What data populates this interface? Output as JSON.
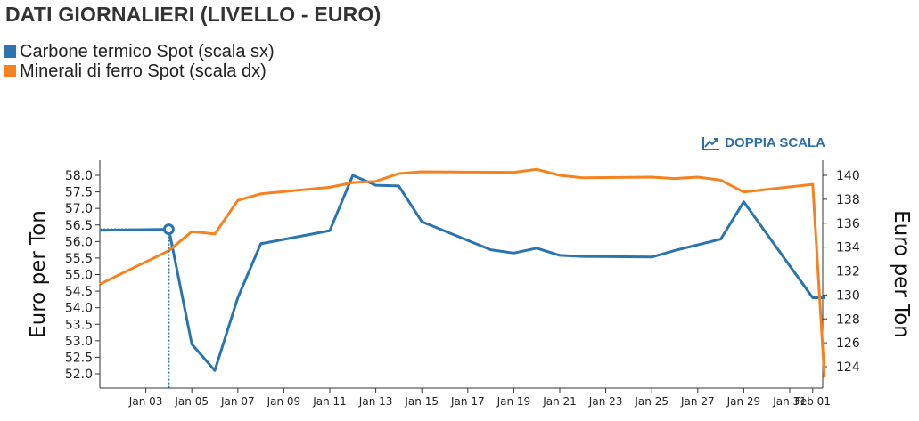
{
  "header": {
    "title": "DATI GIORNALIERI (LIVELLO - EURO)"
  },
  "toolbar": {
    "dual_scale_label": "DOPPIA SCALA",
    "dual_scale_icon": "line-chart-icon",
    "accent_color": "#2f6fa8"
  },
  "chart_data": {
    "type": "line",
    "xlabel": "",
    "ylabel_left": "Euro per Ton",
    "ylabel_right": "Euro per Ton",
    "x_tick_labels": [
      "Jan 03",
      "Jan 05",
      "Jan 07",
      "Jan 09",
      "Jan 11",
      "Jan 13",
      "Jan 15",
      "Jan 17",
      "Jan 19",
      "Jan 21",
      "Jan 23",
      "Jan 25",
      "Jan 27",
      "Jan 29",
      "Jan 31",
      "Feb 01"
    ],
    "ylim_left": [
      51.8,
      58.4
    ],
    "yticks_left": [
      "52.0",
      "52.5",
      "53.0",
      "53.5",
      "54.0",
      "54.5",
      "55.0",
      "55.5",
      "56.0",
      "56.5",
      "57.0",
      "57.5",
      "58.0"
    ],
    "ylim_right": [
      122.8,
      141.6
    ],
    "yticks_right": [
      "124",
      "126",
      "128",
      "130",
      "132",
      "134",
      "136",
      "138",
      "140"
    ],
    "grid": false,
    "legend_position": "top-left",
    "hover_marker": {
      "series": 0,
      "x": "Jan 04",
      "y": 56.37
    },
    "series": [
      {
        "name": "Carbone termico Spot (scala sx)",
        "axis": "left",
        "color": "#2a75b0",
        "points": [
          [
            "Jan 01",
            56.34
          ],
          [
            "Jan 04",
            56.37
          ],
          [
            "Jan 05",
            52.9
          ],
          [
            "Jan 06",
            52.1
          ],
          [
            "Jan 07",
            54.3
          ],
          [
            "Jan 08",
            55.93
          ],
          [
            "Jan 11",
            56.33
          ],
          [
            "Jan 12",
            58.0
          ],
          [
            "Jan 13",
            57.7
          ],
          [
            "Jan 14",
            57.68
          ],
          [
            "Jan 15",
            56.6
          ],
          [
            "Jan 18",
            55.75
          ],
          [
            "Jan 19",
            55.65
          ],
          [
            "Jan 20",
            55.8
          ],
          [
            "Jan 21",
            55.58
          ],
          [
            "Jan 22",
            55.55
          ],
          [
            "Jan 25",
            55.53
          ],
          [
            "Jan 26",
            55.73
          ],
          [
            "Jan 28",
            56.07
          ],
          [
            "Jan 29",
            57.2
          ],
          [
            "Feb 01",
            54.3
          ],
          [
            "Feb 02",
            54.3
          ]
        ]
      },
      {
        "name": "Minerali di ferro Spot (scala dx)",
        "axis": "right",
        "color": "#f5821f",
        "points": [
          [
            "Jan 01",
            130.9
          ],
          [
            "Jan 04",
            133.7
          ],
          [
            "Jan 05",
            135.3
          ],
          [
            "Jan 06",
            135.1
          ],
          [
            "Jan 07",
            137.9
          ],
          [
            "Jan 08",
            138.45
          ],
          [
            "Jan 11",
            139.0
          ],
          [
            "Jan 12",
            139.4
          ],
          [
            "Jan 13",
            139.5
          ],
          [
            "Jan 14",
            140.15
          ],
          [
            "Jan 15",
            140.3
          ],
          [
            "Jan 19",
            140.25
          ],
          [
            "Jan 20",
            140.5
          ],
          [
            "Jan 21",
            140.0
          ],
          [
            "Jan 22",
            139.8
          ],
          [
            "Jan 25",
            139.85
          ],
          [
            "Jan 26",
            139.73
          ],
          [
            "Jan 27",
            139.85
          ],
          [
            "Jan 28",
            139.6
          ],
          [
            "Jan 29",
            138.6
          ],
          [
            "Feb 01",
            139.25
          ],
          [
            "Feb 02",
            123.1
          ]
        ]
      }
    ]
  }
}
